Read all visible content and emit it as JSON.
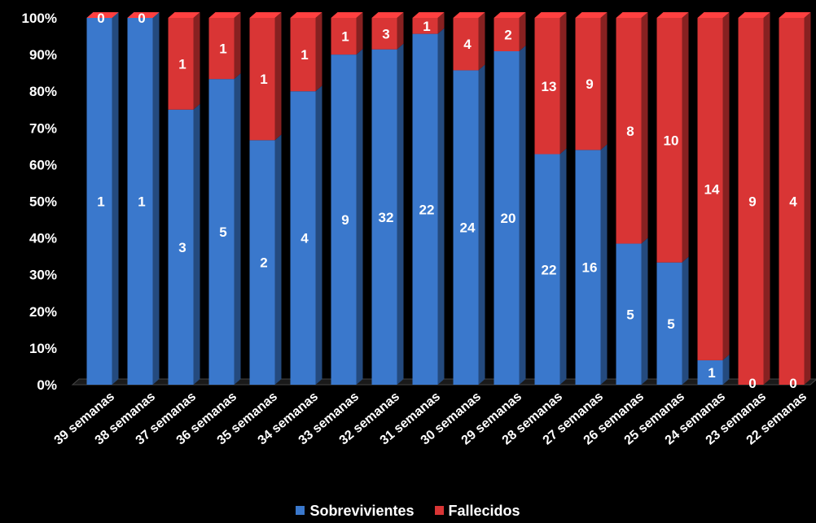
{
  "chart_data": {
    "type": "bar",
    "stacked": "percent",
    "three_d": true,
    "categories": [
      "39 semanas",
      "38 semanas",
      "37 semanas",
      "36 semanas",
      "35 semanas",
      "34 semanas",
      "33 semanas",
      "32 semanas",
      "31 semanas",
      "30 semanas",
      "29 semanas",
      "28 semanas",
      "27 semanas",
      "26 semanas",
      "25 semanas",
      "24 semanas",
      "23 semanas",
      "22 semanas"
    ],
    "series": [
      {
        "name": "Sobrevivientes",
        "color": "#3a78cc",
        "values": [
          1,
          1,
          3,
          5,
          2,
          4,
          9,
          32,
          22,
          24,
          20,
          22,
          16,
          5,
          5,
          1,
          0,
          0
        ]
      },
      {
        "name": "Fallecidos",
        "color": "#d93535",
        "values": [
          0,
          0,
          1,
          1,
          1,
          1,
          1,
          3,
          1,
          4,
          2,
          13,
          9,
          8,
          10,
          14,
          9,
          4
        ]
      }
    ],
    "y_ticks": [
      "0%",
      "10%",
      "20%",
      "30%",
      "40%",
      "50%",
      "60%",
      "70%",
      "80%",
      "90%",
      "100%"
    ],
    "ylim": [
      0,
      100
    ],
    "grid": false,
    "legend_position": "bottom",
    "background": "#000000"
  }
}
